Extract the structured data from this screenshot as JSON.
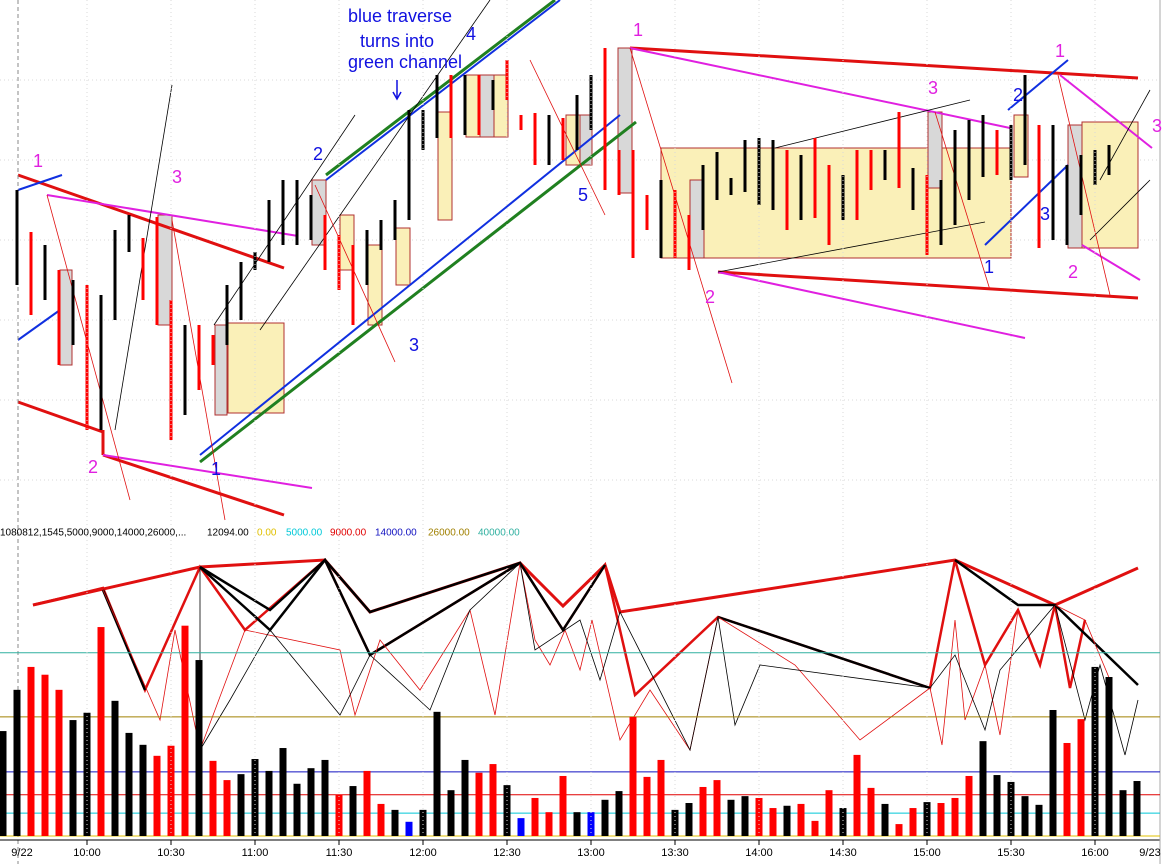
{
  "header": {
    "study": "1080812,1545,5000,9000,14000,26000,...",
    "current": "12094.00"
  },
  "annotations": [
    {
      "text": "1",
      "color": "#e020e0"
    },
    {
      "text": "3",
      "color": "#e020e0"
    },
    {
      "text": "2",
      "color": "#e020e0"
    },
    {
      "text": "1",
      "color": "#1010e0"
    },
    {
      "text": "2",
      "color": "#1010e0"
    },
    {
      "text": "blue traverse",
      "color": "#1010e0"
    },
    {
      "text": "turns into",
      "color": "#1010e0"
    },
    {
      "text": "green channel",
      "color": "#1010e0"
    },
    {
      "text": "4",
      "color": "#1010e0"
    },
    {
      "text": "3",
      "color": "#1010e0"
    },
    {
      "text": "5",
      "color": "#1010e0"
    },
    {
      "text": "1",
      "color": "#e020e0"
    },
    {
      "text": "2",
      "color": "#e020e0"
    },
    {
      "text": "3",
      "color": "#e020e0"
    },
    {
      "text": "1",
      "color": "#e020e0"
    },
    {
      "text": "2",
      "color": "#1010e0"
    },
    {
      "text": "3",
      "color": "#1010e0"
    },
    {
      "text": "1",
      "color": "#1010e0"
    },
    {
      "text": "2",
      "color": "#e020e0"
    },
    {
      "text": "3",
      "color": "#e020e0"
    }
  ],
  "chart_data": [
    {
      "type": "hl",
      "ylim": [
        0,
        525
      ],
      "high": [
        null,
        335,
        293,
        280,
        255,
        245,
        240,
        230,
        295,
        310,
        287,
        308,
        225,
        200,
        200,
        190,
        240,
        263,
        273,
        325,
        345,
        345,
        330,
        310,
        290,
        280,
        295,
        305,
        325,
        415,
        415,
        450,
        450,
        450,
        450,
        445,
        465,
        410,
        412,
        410,
        407,
        430,
        450,
        477,
        375,
        375,
        330,
        345,
        335,
        310,
        360,
        373,
        347,
        385,
        387,
        385,
        375,
        370,
        387,
        360,
        350,
        375,
        375,
        375,
        413,
        357,
        350,
        345,
        395,
        405,
        410,
        395,
        400,
        450,
        400,
        400,
        360,
        370,
        375,
        380,
        null,
        null
      ],
      "low": [
        null,
        240,
        210,
        225,
        160,
        180,
        95,
        95,
        205,
        273,
        225,
        200,
        85,
        110,
        135,
        160,
        180,
        205,
        255,
        263,
        280,
        280,
        285,
        255,
        235,
        200,
        240,
        275,
        285,
        305,
        375,
        387,
        387,
        390,
        390,
        415,
        425,
        395,
        360,
        360,
        365,
        375,
        395,
        335,
        330,
        267,
        295,
        267,
        267,
        255,
        295,
        325,
        330,
        333,
        320,
        315,
        295,
        305,
        307,
        280,
        305,
        305,
        335,
        345,
        337,
        315,
        270,
        280,
        300,
        325,
        348,
        350,
        345,
        360,
        277,
        285,
        280,
        310,
        340,
        350,
        null,
        null
      ],
      "colors": [
        null,
        "#000",
        "#f00",
        "#000",
        "#f00",
        "#000",
        "#f00",
        "#000",
        "#000",
        "#000",
        "#f00",
        "#f00",
        "#f00",
        "#000",
        "#f00",
        "#f00",
        "#000",
        "#000",
        "#000",
        "#000",
        "#000",
        "#000",
        "#000",
        "#f00",
        "#f00",
        "#f00",
        "#000",
        "#000",
        "#000",
        "#000",
        "#000",
        "#000",
        "#f00",
        "#000",
        "#f00",
        "#000",
        "#f00",
        "#f00",
        "#f00",
        "#000",
        "#f00",
        "#000",
        "#000",
        "#f00",
        "#f00",
        "#f00",
        "#f00",
        "#000",
        "#f00",
        "#f00",
        "#000",
        "#000",
        "#000",
        "#000",
        "#000",
        "#000",
        "#f00",
        "#000",
        "#f00",
        "#f00",
        "#000",
        "#f00",
        "#f00",
        "#000",
        "#f00",
        "#000",
        "#f00",
        "#000",
        "#000",
        "#000",
        "#000",
        "#f00",
        "#000",
        "#000",
        "#f00",
        "#000",
        "#000",
        "#000",
        "#000",
        "#000",
        null,
        null
      ]
    },
    {
      "type": "bar",
      "categories": [
        null,
        null,
        null,
        null,
        null,
        null,
        "10:00",
        null,
        null,
        null,
        null,
        null,
        "10:30",
        null,
        null,
        null,
        null,
        null,
        "11:00",
        null,
        null,
        null,
        null,
        null,
        "11:30",
        null,
        null,
        null,
        null,
        null,
        "12:00",
        null,
        null,
        null,
        null,
        null,
        "12:30",
        null,
        null,
        null,
        null,
        null,
        "13:00",
        null,
        null,
        null,
        null,
        null,
        "13:30",
        null,
        null,
        null,
        null,
        null,
        "14:00",
        null,
        null,
        null,
        null,
        null,
        "14:30",
        null,
        null,
        null,
        null,
        null,
        "15:00",
        null,
        null,
        null,
        null,
        null,
        "15:30",
        null,
        null,
        null,
        null,
        null,
        "16:00",
        null,
        null,
        null
      ],
      "date_labels": [
        "9/22",
        "9/23"
      ],
      "values": [
        22900,
        31900,
        36900,
        35200,
        31900,
        25300,
        26900,
        45600,
        29500,
        22500,
        19900,
        17500,
        19700,
        45900,
        38400,
        16400,
        12200,
        13500,
        16800,
        14200,
        19200,
        11400,
        14800,
        16600,
        9000,
        10900,
        14200,
        7000,
        5700,
        3100,
        5700,
        27100,
        10000,
        16600,
        13800,
        15700,
        11100,
        3900,
        8300,
        5200,
        13100,
        5200,
        5200,
        7900,
        9800,
        26000,
        12900,
        16600,
        5700,
        7200,
        10700,
        12200,
        7900,
        8700,
        8300,
        6100,
        6600,
        7000,
        3300,
        10000,
        6100,
        17700,
        10500,
        7000,
        2600,
        6100,
        7400,
        7200,
        8300,
        13100,
        20700,
        13300,
        11800,
        8700,
        6800,
        27500,
        20300,
        25500,
        36900,
        34700,
        10000,
        12000
      ],
      "colors": [
        "#000",
        "#000",
        "#f00",
        "#f00",
        "#f00",
        "#000",
        "#000",
        "#f00",
        "#000",
        "#000",
        "#000",
        "#f00",
        "#f00",
        "#f00",
        "#000",
        "#f00",
        "#f00",
        "#000",
        "#000",
        "#000",
        "#000",
        "#000",
        "#000",
        "#000",
        "#f00",
        "#000",
        "#f00",
        "#f00",
        "#000",
        "#00f",
        "#000",
        "#000",
        "#000",
        "#000",
        "#f00",
        "#f00",
        "#000",
        "#00f",
        "#f00",
        "#f00",
        "#f00",
        "#000",
        "#00f",
        "#000",
        "#000",
        "#f00",
        "#f00",
        "#f00",
        "#000",
        "#000",
        "#f00",
        "#f00",
        "#000",
        "#000",
        "#f00",
        "#f00",
        "#000",
        "#f00",
        "#f00",
        "#f00",
        "#000",
        "#f00",
        "#f00",
        "#000",
        "#f00",
        "#f00",
        "#000",
        "#f00",
        "#f00",
        "#f00",
        "#000",
        "#000",
        "#000",
        "#000",
        "#000",
        "#000",
        "#f00",
        "#f00",
        "#000",
        "#000",
        "#000",
        "#000"
      ],
      "ylim": [
        0,
        64600
      ],
      "levels": [
        {
          "value": 0,
          "label": "0.00",
          "color": "#e0c000"
        },
        {
          "value": 5000,
          "label": "5000.00",
          "color": "#00c8d8"
        },
        {
          "value": 9000,
          "label": "9000.00",
          "color": "#e00000"
        },
        {
          "value": 14000,
          "label": "14000.00",
          "color": "#1010c0"
        },
        {
          "value": 26000,
          "label": "26000.00",
          "color": "#a08000"
        },
        {
          "value": 40000,
          "label": "40000.00",
          "color": "#30b0a0"
        }
      ]
    }
  ]
}
